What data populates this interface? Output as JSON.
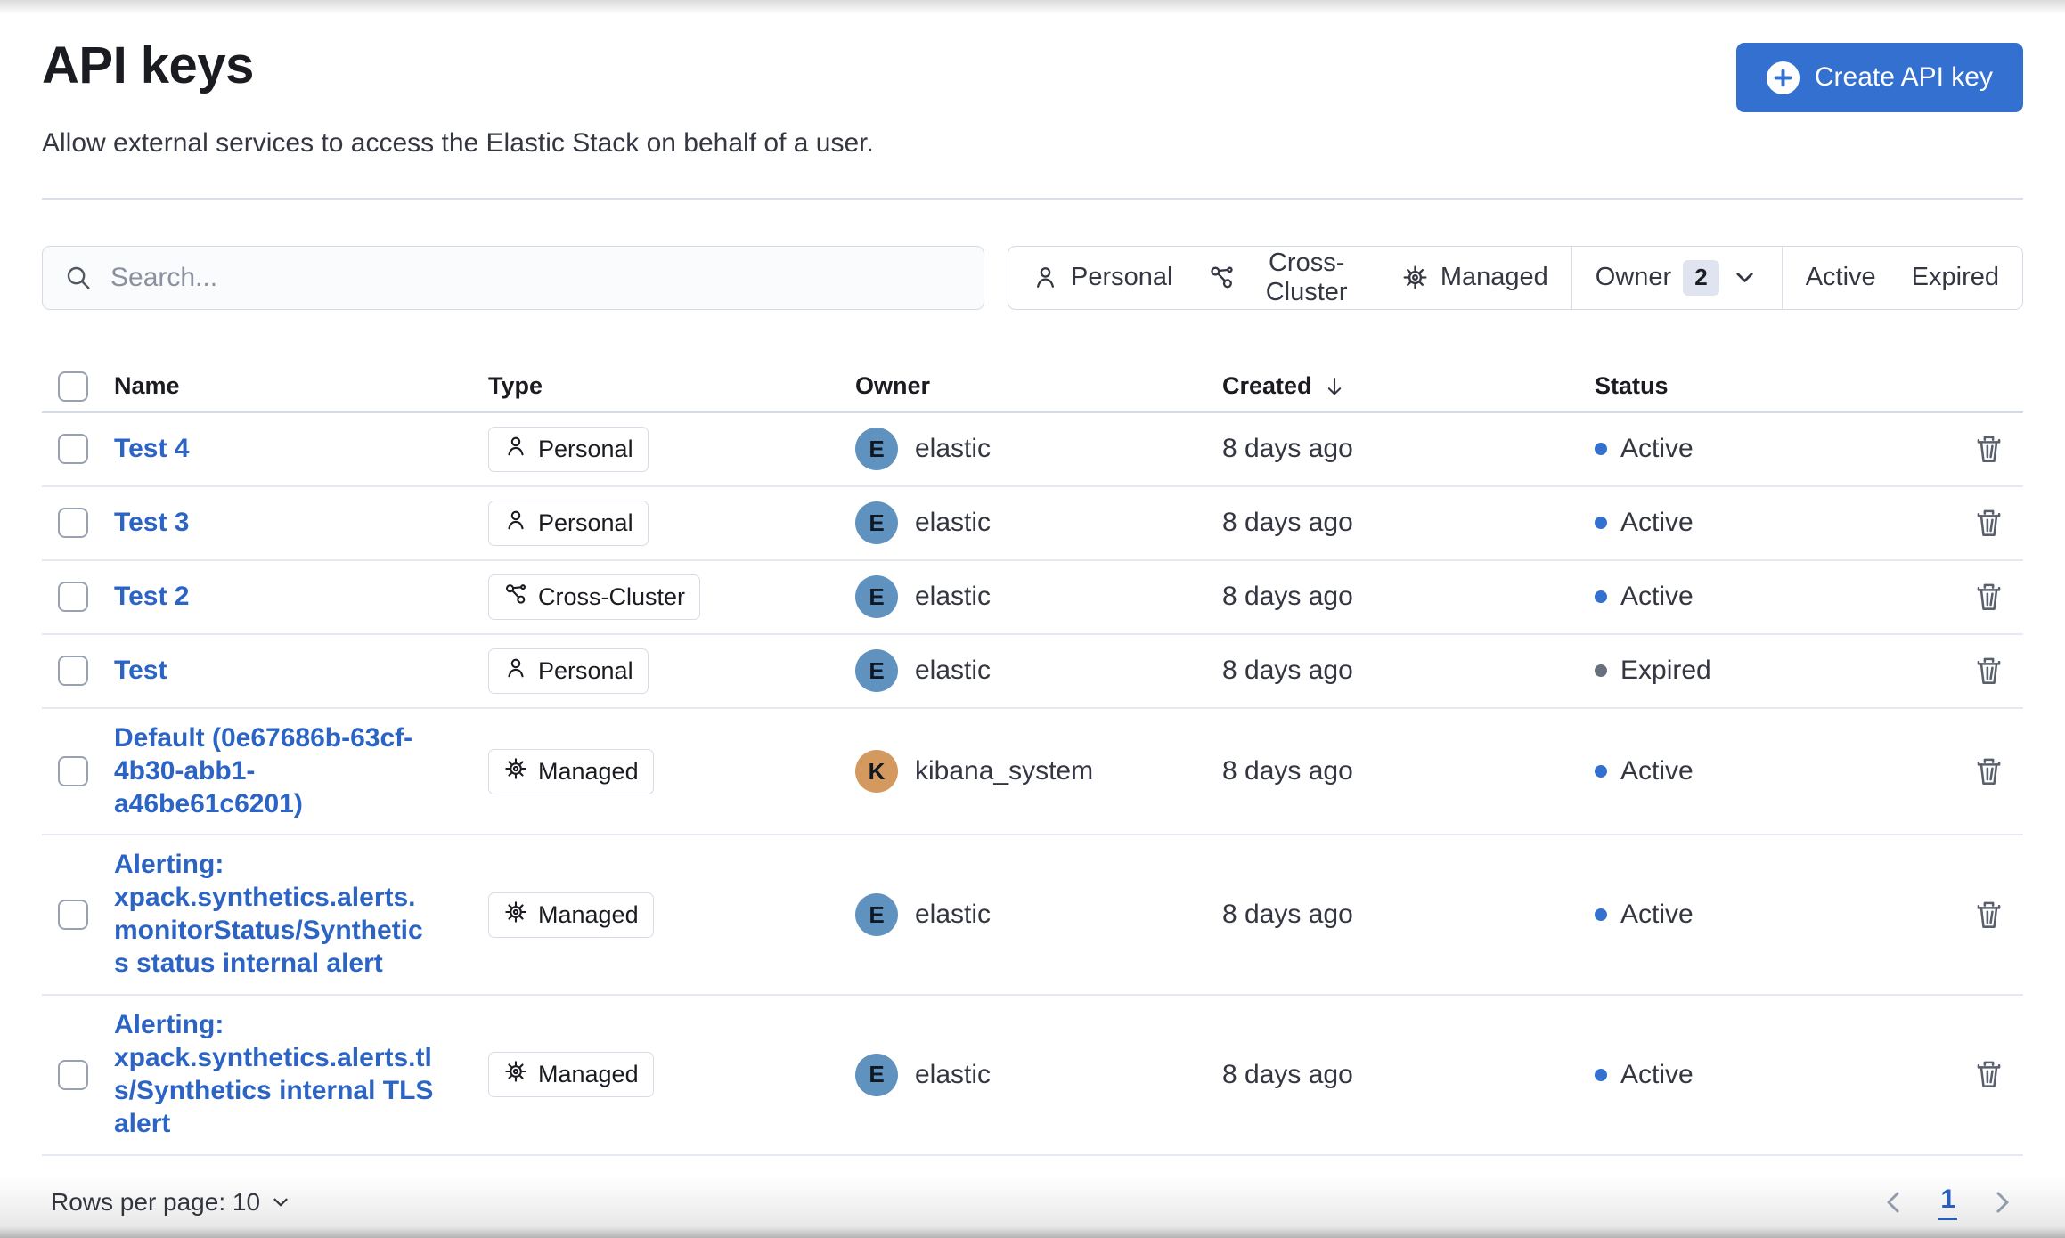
{
  "page": {
    "title": "API keys",
    "subtitle": "Allow external services to access the Elastic Stack on behalf of a user.",
    "create_button_label": "Create API key"
  },
  "toolbar": {
    "search_placeholder": "Search...",
    "filters": {
      "personal_label": "Personal",
      "cross_cluster_label": "Cross-Cluster",
      "managed_label": "Managed",
      "owner_label": "Owner",
      "owner_count": "2",
      "active_label": "Active",
      "expired_label": "Expired"
    }
  },
  "table": {
    "columns": {
      "name": "Name",
      "type": "Type",
      "owner": "Owner",
      "created": "Created",
      "status": "Status"
    },
    "sorted_column": "Created",
    "sort_direction": "descending",
    "rows": [
      {
        "name": "Test 4",
        "type": "Personal",
        "type_icon": "person-icon",
        "owner": "elastic",
        "owner_initial": "E",
        "avatar_color": "#6092C0",
        "created": "8 days ago",
        "status": "Active"
      },
      {
        "name": "Test 3",
        "type": "Personal",
        "type_icon": "person-icon",
        "owner": "elastic",
        "owner_initial": "E",
        "avatar_color": "#6092C0",
        "created": "8 days ago",
        "status": "Active"
      },
      {
        "name": "Test 2",
        "type": "Cross-Cluster",
        "type_icon": "cluster-icon",
        "owner": "elastic",
        "owner_initial": "E",
        "avatar_color": "#6092C0",
        "created": "8 days ago",
        "status": "Active"
      },
      {
        "name": "Test",
        "type": "Personal",
        "type_icon": "person-icon",
        "owner": "elastic",
        "owner_initial": "E",
        "avatar_color": "#6092C0",
        "created": "8 days ago",
        "status": "Expired"
      },
      {
        "name": "Default (0e67686b-63cf-4b30-abb1-a46be61c6201)",
        "type": "Managed",
        "type_icon": "gear-icon",
        "owner": "kibana_system",
        "owner_initial": "K",
        "avatar_color": "#D4995F",
        "created": "8 days ago",
        "status": "Active"
      },
      {
        "name": "Alerting: xpack.synthetics.alerts.monitorStatus/Synthetics status internal alert",
        "type": "Managed",
        "type_icon": "gear-icon",
        "owner": "elastic",
        "owner_initial": "E",
        "avatar_color": "#6092C0",
        "created": "8 days ago",
        "status": "Active"
      },
      {
        "name": "Alerting: xpack.synthetics.alerts.tls/Synthetics internal TLS alert",
        "type": "Managed",
        "type_icon": "gear-icon",
        "owner": "elastic",
        "owner_initial": "E",
        "avatar_color": "#6092C0",
        "created": "8 days ago",
        "status": "Active"
      }
    ]
  },
  "pagination": {
    "rows_per_page_label": "Rows per page: 10",
    "current_page": "1"
  },
  "colors": {
    "primary_button": "#3370CF",
    "link": "#2B64C4",
    "active_dot": "#3370CF",
    "expired_dot": "#69707D",
    "elastic_avatar": "#6092C0",
    "kibana_avatar": "#D4995F"
  }
}
